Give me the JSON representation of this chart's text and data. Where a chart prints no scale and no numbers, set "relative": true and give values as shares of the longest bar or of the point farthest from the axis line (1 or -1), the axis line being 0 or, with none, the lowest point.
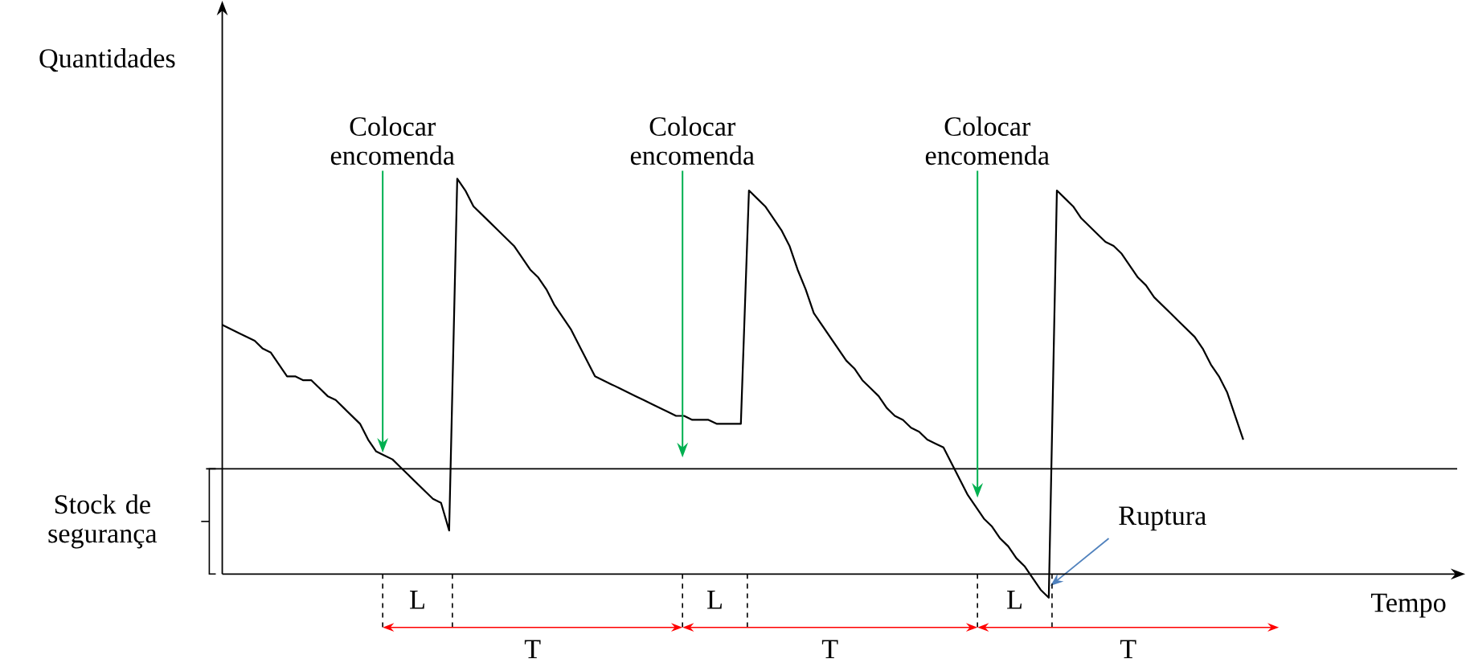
{
  "chart_data": {
    "type": "line",
    "relative": true,
    "xlabel": "Tempo",
    "ylabel": "Quantidades",
    "categories": [
      null,
      null,
      null,
      null,
      null,
      null,
      null,
      null,
      null,
      null,
      null,
      null,
      null,
      null,
      null,
      null,
      null,
      null,
      null,
      null,
      null,
      null,
      null,
      null,
      null,
      null,
      null,
      null,
      null,
      null,
      null,
      null,
      null,
      null,
      null,
      null,
      null,
      null,
      null,
      null,
      null,
      null,
      null,
      null,
      null,
      null,
      null,
      null,
      null,
      null,
      null,
      null,
      null,
      null,
      null,
      null,
      null,
      null,
      null,
      null,
      null,
      null,
      null,
      null,
      null,
      null,
      null,
      null,
      null,
      null,
      null,
      null,
      null,
      null,
      null,
      null,
      null,
      null,
      null,
      null,
      null,
      null,
      null,
      null,
      null,
      null,
      null,
      null,
      null,
      null,
      null,
      null,
      null,
      null,
      null,
      null,
      null,
      null,
      null,
      null,
      null,
      null,
      null,
      null,
      null,
      null,
      null,
      null,
      null,
      null,
      null,
      null,
      null,
      null,
      null,
      null,
      null,
      null,
      null,
      null,
      null,
      null,
      null,
      null,
      null,
      null,
      null
    ],
    "series": [
      {
        "color": "#000000",
        "values": [
          0.63,
          0.62,
          0.61,
          0.6,
          0.59,
          0.57,
          0.56,
          0.53,
          0.5,
          0.5,
          0.49,
          0.49,
          0.47,
          0.45,
          0.44,
          0.42,
          0.4,
          0.38,
          0.34,
          0.31,
          0.3,
          0.29,
          0.27,
          0.25,
          0.23,
          0.21,
          0.19,
          0.18,
          0.11,
          1.0,
          0.97,
          0.93,
          0.91,
          0.89,
          0.87,
          0.85,
          0.83,
          0.8,
          0.77,
          0.75,
          0.72,
          0.68,
          0.65,
          0.62,
          0.58,
          0.54,
          0.5,
          0.49,
          0.48,
          0.47,
          0.46,
          0.45,
          0.44,
          0.43,
          0.42,
          0.41,
          0.4,
          0.4,
          0.39,
          0.39,
          0.39,
          0.38,
          0.38,
          0.38,
          0.38,
          0.97,
          0.95,
          0.93,
          0.9,
          0.87,
          0.83,
          0.77,
          0.72,
          0.66,
          0.63,
          0.6,
          0.57,
          0.54,
          0.52,
          0.49,
          0.47,
          0.45,
          0.42,
          0.4,
          0.39,
          0.37,
          0.36,
          0.34,
          0.33,
          0.32,
          0.28,
          0.24,
          0.2,
          0.17,
          0.14,
          0.12,
          0.09,
          0.07,
          0.04,
          0.02,
          -0.01,
          -0.04,
          -0.06,
          0.97,
          0.95,
          0.93,
          0.9,
          0.88,
          0.86,
          0.84,
          0.83,
          0.81,
          0.78,
          0.75,
          0.73,
          0.7,
          0.68,
          0.66,
          0.64,
          0.62,
          0.6,
          0.57,
          0.53,
          0.5,
          0.46,
          0.4,
          0.34
        ]
      }
    ],
    "ref_lines": [
      {
        "axis": "y",
        "value": 0.266,
        "label": "Stock de segurança"
      }
    ],
    "annotations": [
      "Colocar encomenda",
      "Colocar encomenda",
      "Colocar encomenda",
      "Ruptura",
      "L",
      "L",
      "L",
      "T",
      "T",
      "T"
    ]
  }
}
